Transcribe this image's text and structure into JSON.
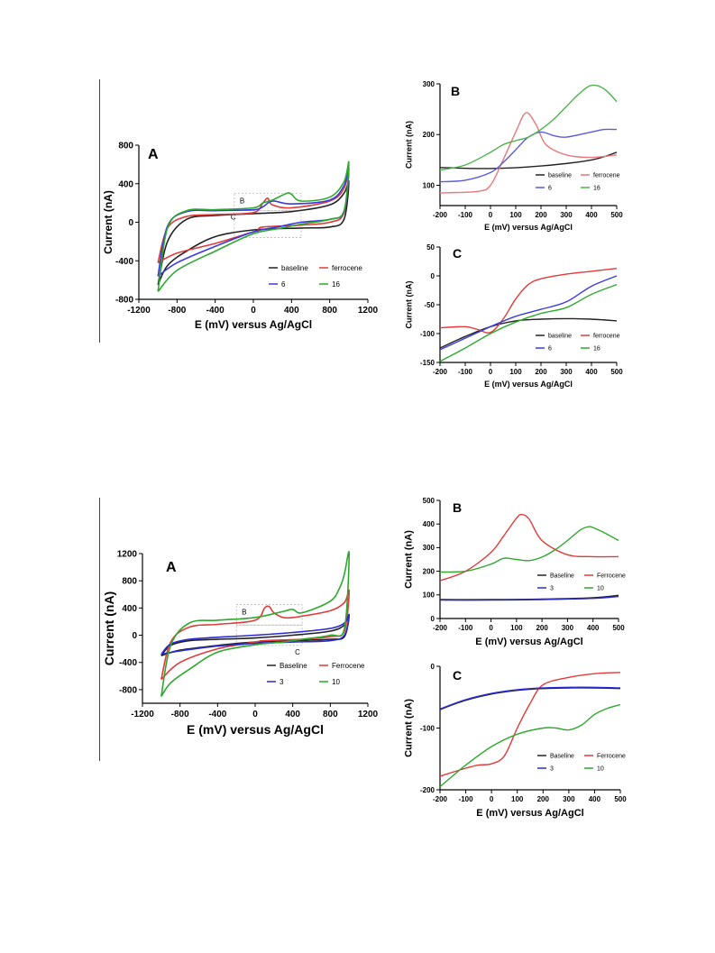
{
  "chart_data": [
    {
      "id": "f1A",
      "type": "line",
      "panel": "A",
      "xlabel": "E (mV) versus Ag/AgCl",
      "ylabel": "Current (nA)",
      "xlim": [
        -1200,
        1200
      ],
      "ylim": [
        -800,
        800
      ],
      "xticks": [
        -1200,
        -800,
        -400,
        0,
        400,
        800,
        1200
      ],
      "yticks": [
        -800,
        -400,
        0,
        400,
        800
      ],
      "tick_labels_x": [
        "-1200",
        "-800",
        "-400",
        "0",
        "400",
        "800",
        "1200"
      ],
      "tick_labels_y": [
        "-800",
        "-400",
        "0",
        "400",
        "800"
      ],
      "annotations": [
        "B",
        "C"
      ],
      "legend_position": "bottom-right",
      "series": [
        {
          "name": "baseline",
          "color": "#222222",
          "x": [
            -1000,
            -900,
            -700,
            -400,
            0,
            400,
            800,
            950,
            1000,
            950,
            800,
            500,
            0,
            -400,
            -700,
            -900,
            -1000
          ],
          "y": [
            -650,
            -200,
            30,
            70,
            90,
            110,
            180,
            300,
            420,
            30,
            -50,
            -60,
            -80,
            -150,
            -300,
            -450,
            -650
          ]
        },
        {
          "name": "ferrocene",
          "color": "#e03a3a",
          "x": [
            -1000,
            -900,
            -700,
            -400,
            0,
            100,
            150,
            200,
            400,
            800,
            950,
            1000,
            950,
            800,
            500,
            100,
            50,
            0,
            -400,
            -800,
            -1000
          ],
          "y": [
            -420,
            -60,
            60,
            80,
            100,
            200,
            250,
            180,
            150,
            220,
            350,
            560,
            100,
            0,
            -30,
            -50,
            -90,
            -100,
            -220,
            -320,
            -420
          ]
        },
        {
          "name": "6",
          "color": "#3a3ae0",
          "x": [
            -1000,
            -900,
            -700,
            -400,
            0,
            100,
            200,
            400,
            800,
            950,
            1000,
            950,
            800,
            500,
            250,
            0,
            -400,
            -800,
            -1000
          ],
          "y": [
            -560,
            -40,
            110,
            120,
            130,
            160,
            220,
            190,
            230,
            380,
            560,
            110,
            30,
            0,
            -50,
            -100,
            -250,
            -420,
            -560
          ]
        },
        {
          "name": "16",
          "color": "#2ea82e",
          "x": [
            -1000,
            -900,
            -700,
            -400,
            0,
            100,
            200,
            350,
            400,
            500,
            800,
            950,
            1000,
            950,
            800,
            500,
            300,
            0,
            -400,
            -800,
            -1000
          ],
          "y": [
            -720,
            -60,
            120,
            130,
            150,
            200,
            230,
            300,
            290,
            220,
            260,
            420,
            620,
            120,
            30,
            -20,
            -60,
            -120,
            -300,
            -500,
            -720
          ]
        }
      ]
    },
    {
      "id": "f1B",
      "type": "line",
      "panel": "B",
      "xlabel": "E (mV) versus Ag/AgCl",
      "ylabel": "Current (nA)",
      "xlim": [
        -200,
        500
      ],
      "ylim": [
        60,
        300
      ],
      "xticks": [
        -200,
        -100,
        0,
        100,
        200,
        300,
        400,
        500
      ],
      "yticks": [
        100,
        200,
        300
      ],
      "tick_labels_x": [
        "-200",
        "-100",
        "0",
        "100",
        "200",
        "300",
        "400",
        "500"
      ],
      "tick_labels_y": [
        "100",
        "200",
        "300"
      ],
      "legend_position": "bottom",
      "series": [
        {
          "name": "baseline",
          "color": "#222222",
          "x": [
            -200,
            0,
            200,
            400,
            500
          ],
          "y": [
            135,
            133,
            138,
            150,
            165
          ]
        },
        {
          "name": "ferrocene",
          "color": "#e8787a",
          "x": [
            -200,
            -50,
            0,
            50,
            100,
            140,
            180,
            220,
            300,
            400,
            500
          ],
          "y": [
            85,
            88,
            100,
            150,
            205,
            243,
            220,
            180,
            160,
            155,
            160
          ]
        },
        {
          "name": "6",
          "color": "#5a5ae0",
          "x": [
            -200,
            -100,
            0,
            50,
            100,
            150,
            200,
            250,
            300,
            400,
            450,
            500
          ],
          "y": [
            107,
            110,
            125,
            145,
            170,
            195,
            205,
            198,
            195,
            205,
            210,
            210
          ]
        },
        {
          "name": "16",
          "color": "#4cb34c",
          "x": [
            -200,
            -100,
            0,
            50,
            100,
            150,
            200,
            250,
            300,
            350,
            400,
            450,
            500
          ],
          "y": [
            130,
            140,
            165,
            180,
            188,
            195,
            210,
            230,
            255,
            280,
            297,
            290,
            265
          ]
        }
      ]
    },
    {
      "id": "f1C",
      "type": "line",
      "panel": "C",
      "xlabel": "E (mV) versus Ag/AgCl",
      "ylabel": "Current (nA)",
      "xlim": [
        -200,
        500
      ],
      "ylim": [
        -150,
        50
      ],
      "xticks": [
        -200,
        -100,
        0,
        100,
        200,
        300,
        400,
        500
      ],
      "yticks": [
        -150,
        -100,
        -50,
        0,
        50
      ],
      "tick_labels_x": [
        "-200",
        "-100",
        "0",
        "100",
        "200",
        "300",
        "400",
        "500"
      ],
      "tick_labels_y": [
        "-150",
        "-100",
        "-50",
        "0",
        "50"
      ],
      "legend_position": "bottom",
      "series": [
        {
          "name": "baseline",
          "color": "#222222",
          "x": [
            -200,
            -100,
            0,
            100,
            200,
            300,
            400,
            500
          ],
          "y": [
            -125,
            -105,
            -88,
            -78,
            -75,
            -74,
            -75,
            -78
          ]
        },
        {
          "name": "ferrocene",
          "color": "#e03a3a",
          "x": [
            -200,
            -100,
            -50,
            0,
            50,
            100,
            150,
            200,
            300,
            400,
            500
          ],
          "y": [
            -90,
            -88,
            -93,
            -98,
            -75,
            -40,
            -15,
            -5,
            3,
            8,
            13
          ]
        },
        {
          "name": "6",
          "color": "#3a3ae0",
          "x": [
            -200,
            -100,
            0,
            100,
            200,
            300,
            400,
            500
          ],
          "y": [
            -128,
            -108,
            -88,
            -70,
            -58,
            -45,
            -18,
            0
          ]
        },
        {
          "name": "16",
          "color": "#2ea82e",
          "x": [
            -200,
            -100,
            0,
            100,
            200,
            300,
            400,
            500
          ],
          "y": [
            -148,
            -125,
            -100,
            -80,
            -65,
            -55,
            -32,
            -15
          ]
        }
      ]
    },
    {
      "id": "f2A",
      "type": "line",
      "panel": "A",
      "xlabel": "E (mV) versus Ag/AgCl",
      "ylabel": "Current (nA)",
      "xlim": [
        -1200,
        1200
      ],
      "ylim": [
        -1000,
        1200
      ],
      "xticks": [
        -1200,
        -800,
        -400,
        0,
        400,
        800,
        1200
      ],
      "yticks": [
        -800,
        -400,
        0,
        400,
        800,
        1200
      ],
      "tick_labels_x": [
        "-1200",
        "-800",
        "-400",
        "0",
        "400",
        "800",
        "1200"
      ],
      "tick_labels_y": [
        "-800",
        "-400",
        "0",
        "400",
        "800",
        "1200"
      ],
      "annotations": [
        "B",
        "C"
      ],
      "legend_position": "bottom-right",
      "series": [
        {
          "name": "Baseline",
          "color": "#222222",
          "x": [
            -1000,
            -900,
            -700,
            -400,
            0,
            400,
            800,
            950,
            1000,
            950,
            800,
            400,
            0,
            -400,
            -800,
            -1000
          ],
          "y": [
            -300,
            -150,
            -80,
            -60,
            -40,
            0,
            60,
            150,
            300,
            -20,
            -60,
            -80,
            -100,
            -150,
            -220,
            -300
          ]
        },
        {
          "name": "Ferrocene",
          "color": "#e03a3a",
          "x": [
            -1000,
            -900,
            -700,
            -400,
            0,
            100,
            150,
            200,
            300,
            400,
            500,
            800,
            950,
            1000,
            950,
            800,
            500,
            100,
            0,
            -400,
            -800,
            -1000
          ],
          "y": [
            -650,
            -100,
            120,
            160,
            220,
            400,
            420,
            330,
            260,
            260,
            280,
            360,
            480,
            650,
            60,
            -20,
            -60,
            -80,
            -100,
            -200,
            -400,
            -650
          ]
        },
        {
          "name": "3",
          "color": "#2a2ad0",
          "x": [
            -1000,
            -900,
            -700,
            -400,
            0,
            400,
            800,
            950,
            1000,
            950,
            800,
            400,
            0,
            -400,
            -800,
            -1000
          ],
          "y": [
            -280,
            -130,
            -60,
            -30,
            0,
            40,
            100,
            180,
            300,
            0,
            -80,
            -100,
            -120,
            -160,
            -230,
            -280
          ]
        },
        {
          "name": "10",
          "color": "#2ea82e",
          "x": [
            -1000,
            -900,
            -700,
            -400,
            0,
            300,
            400,
            500,
            800,
            900,
            950,
            1000,
            950,
            800,
            500,
            300,
            0,
            -400,
            -700,
            -900,
            -1000
          ],
          "y": [
            -900,
            -150,
            180,
            220,
            260,
            350,
            380,
            330,
            500,
            700,
            900,
            1200,
            100,
            0,
            -60,
            -100,
            -140,
            -250,
            -500,
            -700,
            -900
          ]
        }
      ]
    },
    {
      "id": "f2B",
      "type": "line",
      "panel": "B",
      "xlabel": "E (mV) versus Ag/AgCl",
      "ylabel": "Current (nA)",
      "xlim": [
        -200,
        500
      ],
      "ylim": [
        0,
        500
      ],
      "xticks": [
        -200,
        -100,
        0,
        100,
        200,
        300,
        400,
        500
      ],
      "yticks": [
        0,
        100,
        200,
        300,
        400,
        500
      ],
      "tick_labels_x": [
        "-200",
        "-100",
        "0",
        "100",
        "200",
        "300",
        "400",
        "500"
      ],
      "tick_labels_y": [
        "0",
        "100",
        "200",
        "300",
        "400",
        "500"
      ],
      "legend_position": "bottom",
      "series": [
        {
          "name": "Baseline",
          "color": "#222222",
          "x": [
            -200,
            0,
            200,
            400,
            500
          ],
          "y": [
            80,
            80,
            82,
            88,
            98
          ]
        },
        {
          "name": "Ferrocene",
          "color": "#e03a3a",
          "x": [
            -200,
            -100,
            0,
            50,
            100,
            120,
            150,
            200,
            300,
            400,
            500
          ],
          "y": [
            160,
            200,
            280,
            350,
            425,
            440,
            420,
            330,
            270,
            262,
            262
          ]
        },
        {
          "name": "3",
          "color": "#2a2ad0",
          "x": [
            -200,
            0,
            200,
            400,
            500
          ],
          "y": [
            78,
            78,
            80,
            85,
            93
          ]
        },
        {
          "name": "10",
          "color": "#2ea82e",
          "x": [
            -200,
            -100,
            0,
            50,
            100,
            150,
            200,
            250,
            300,
            350,
            380,
            400,
            450,
            500
          ],
          "y": [
            197,
            200,
            230,
            255,
            250,
            245,
            260,
            290,
            330,
            375,
            388,
            385,
            360,
            330
          ]
        }
      ]
    },
    {
      "id": "f2C",
      "type": "line",
      "panel": "C",
      "xlabel": "E (mV) versus Ag/AgCl",
      "ylabel": "Current (nA)",
      "xlim": [
        -200,
        500
      ],
      "ylim": [
        -200,
        0
      ],
      "xticks": [
        -200,
        -100,
        0,
        100,
        200,
        300,
        400,
        500
      ],
      "yticks": [
        -200,
        -100,
        0
      ],
      "tick_labels_x": [
        "-200",
        "-100",
        "0",
        "100",
        "200",
        "300",
        "400",
        "500"
      ],
      "tick_labels_y": [
        "-200",
        "-100",
        "0"
      ],
      "legend_position": "bottom",
      "series": [
        {
          "name": "Baseline",
          "color": "#222222",
          "x": [
            -200,
            -100,
            0,
            100,
            200,
            300,
            400,
            500
          ],
          "y": [
            -70,
            -55,
            -45,
            -39,
            -36,
            -35,
            -35,
            -36
          ]
        },
        {
          "name": "Ferrocene",
          "color": "#e03a3a",
          "x": [
            -200,
            -100,
            -50,
            0,
            50,
            100,
            150,
            200,
            300,
            400,
            500
          ],
          "y": [
            -178,
            -165,
            -160,
            -158,
            -145,
            -100,
            -60,
            -30,
            -18,
            -12,
            -10
          ]
        },
        {
          "name": "3",
          "color": "#2a2ad0",
          "x": [
            -200,
            -100,
            0,
            100,
            200,
            300,
            400,
            500
          ],
          "y": [
            -69,
            -54,
            -44,
            -38,
            -35,
            -34,
            -34,
            -35
          ]
        },
        {
          "name": "10",
          "color": "#2ea82e",
          "x": [
            -200,
            -100,
            0,
            100,
            200,
            250,
            300,
            350,
            400,
            450,
            500
          ],
          "y": [
            -195,
            -160,
            -130,
            -110,
            -100,
            -100,
            -103,
            -95,
            -78,
            -68,
            -62
          ]
        }
      ]
    }
  ]
}
